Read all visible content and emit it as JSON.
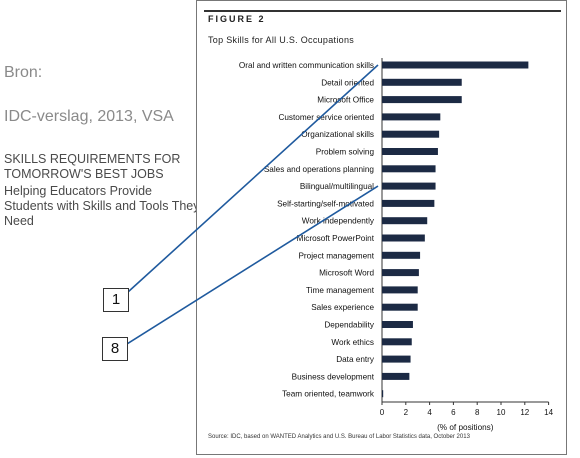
{
  "side": {
    "source_label": "Bron:",
    "report": "IDC-verslag, 2013, VSA",
    "title": "SKILLS REQUIREMENTS FOR TOMORROW'S BEST JOBS",
    "subtitle": "Helping Educators Provide Students with Skills and Tools They Need",
    "callouts": [
      "1",
      "8"
    ]
  },
  "figure": {
    "label": "FIGURE 2",
    "title": "Top Skills for All U.S. Occupations",
    "source": "Source: IDC, based on WANTED Analytics and U.S. Bureau of Labor Statistics data, October 2013"
  },
  "chart_data": {
    "type": "bar",
    "orientation": "horizontal",
    "title": "Top Skills for All U.S. Occupations",
    "xlabel": "(% of positions)",
    "ylabel": "",
    "xlim": [
      0,
      14
    ],
    "xticks": [
      0,
      2,
      4,
      6,
      8,
      10,
      12,
      14
    ],
    "grid": false,
    "bar_color": "#1c2a44",
    "categories": [
      "Oral and written communication skills",
      "Detail oriented",
      "Microsoft Office",
      "Customer service oriented",
      "Organizational skills",
      "Problem solving",
      "Sales and operations planning",
      "Bilingual/multilingual",
      "Self-starting/self-motivated",
      "Work independently",
      "Microsoft PowerPoint",
      "Project management",
      "Microsoft Word",
      "Time management",
      "Sales experience",
      "Dependability",
      "Work ethics",
      "Data entry",
      "Business development",
      "Team oriented, teamwork"
    ],
    "values": [
      12.3,
      6.7,
      6.7,
      4.9,
      4.8,
      4.7,
      4.5,
      4.5,
      4.4,
      3.8,
      3.6,
      3.2,
      3.1,
      3.0,
      3.0,
      2.6,
      2.5,
      2.4,
      2.3,
      0.1
    ]
  },
  "annotations": [
    {
      "label": "1",
      "category": "Oral and written communication skills"
    },
    {
      "label": "8",
      "category": "Bilingual/multilingual"
    }
  ],
  "colors": {
    "callout_line": "#1f5a9e",
    "bar": "#1c2a44"
  }
}
